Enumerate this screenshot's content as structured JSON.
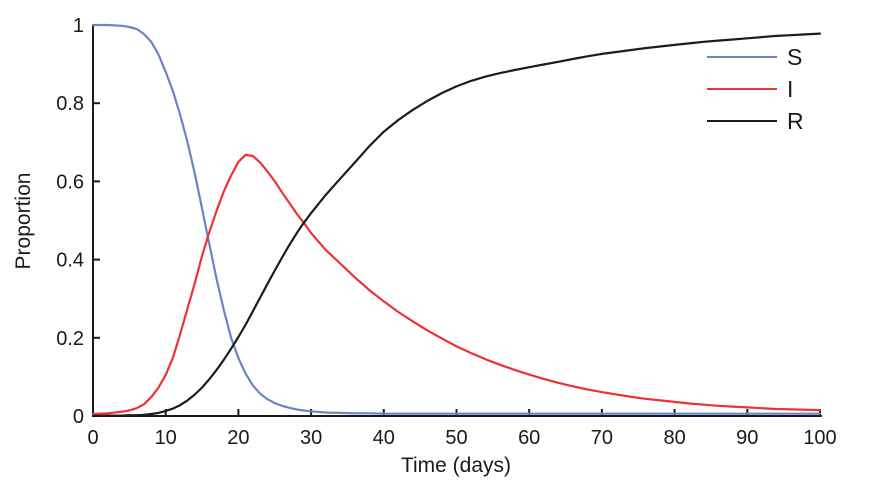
{
  "figure": {
    "background": "#ffffff",
    "axis_color": "#1c1c1c",
    "text_color": "#1a1a1a",
    "tick_font_px": 20
  },
  "chart_data": {
    "type": "line",
    "title": "",
    "xlabel": "Time (days)",
    "ylabel": "Proportion",
    "xlim": [
      0,
      100
    ],
    "ylim": [
      0,
      1
    ],
    "x_ticks": [
      0,
      10,
      20,
      30,
      40,
      50,
      60,
      70,
      80,
      90,
      100
    ],
    "y_ticks": [
      0,
      0.2,
      0.4,
      0.6,
      0.8,
      1
    ],
    "grid": false,
    "legend_position": "upper-right",
    "x": [
      0,
      2,
      4,
      5,
      6,
      7,
      8,
      9,
      10,
      11,
      12,
      13,
      14,
      15,
      16,
      17,
      18,
      19,
      20,
      21,
      22,
      23,
      24,
      25,
      26,
      27,
      28,
      29,
      30,
      32,
      34,
      36,
      38,
      40,
      42,
      44,
      46,
      48,
      50,
      52,
      54,
      56,
      58,
      60,
      62,
      64,
      66,
      68,
      70,
      72,
      74,
      76,
      78,
      80,
      82,
      84,
      86,
      88,
      90,
      92,
      94,
      96,
      98,
      100
    ],
    "series": [
      {
        "name": "S",
        "color": "#6b84c6",
        "values": [
          1.0,
          1.0,
          0.998,
          0.995,
          0.99,
          0.977,
          0.957,
          0.925,
          0.88,
          0.83,
          0.77,
          0.7,
          0.62,
          0.53,
          0.44,
          0.35,
          0.27,
          0.2,
          0.148,
          0.108,
          0.078,
          0.057,
          0.043,
          0.033,
          0.026,
          0.021,
          0.017,
          0.014,
          0.012,
          0.009,
          0.008,
          0.007,
          0.007,
          0.006,
          0.006,
          0.006,
          0.006,
          0.006,
          0.006,
          0.006,
          0.006,
          0.006,
          0.006,
          0.006,
          0.006,
          0.006,
          0.006,
          0.006,
          0.006,
          0.006,
          0.006,
          0.006,
          0.006,
          0.006,
          0.006,
          0.006,
          0.006,
          0.006,
          0.006,
          0.006,
          0.006,
          0.006,
          0.006,
          0.006
        ]
      },
      {
        "name": "I",
        "color": "#ed3237",
        "values": [
          0.005,
          0.007,
          0.011,
          0.014,
          0.02,
          0.03,
          0.048,
          0.072,
          0.105,
          0.15,
          0.21,
          0.275,
          0.34,
          0.41,
          0.47,
          0.525,
          0.575,
          0.615,
          0.65,
          0.668,
          0.665,
          0.648,
          0.625,
          0.6,
          0.572,
          0.545,
          0.518,
          0.494,
          0.468,
          0.425,
          0.39,
          0.355,
          0.322,
          0.293,
          0.266,
          0.242,
          0.219,
          0.198,
          0.178,
          0.161,
          0.145,
          0.131,
          0.118,
          0.106,
          0.095,
          0.085,
          0.076,
          0.068,
          0.061,
          0.055,
          0.049,
          0.044,
          0.04,
          0.036,
          0.032,
          0.029,
          0.026,
          0.024,
          0.022,
          0.02,
          0.018,
          0.017,
          0.016,
          0.015
        ]
      },
      {
        "name": "R",
        "color": "#1c1c1c",
        "values": [
          0.0,
          0.001,
          0.001,
          0.002,
          0.002,
          0.003,
          0.005,
          0.008,
          0.013,
          0.019,
          0.028,
          0.04,
          0.055,
          0.073,
          0.094,
          0.118,
          0.144,
          0.172,
          0.202,
          0.234,
          0.268,
          0.303,
          0.338,
          0.372,
          0.405,
          0.437,
          0.467,
          0.494,
          0.519,
          0.565,
          0.607,
          0.648,
          0.69,
          0.727,
          0.757,
          0.783,
          0.806,
          0.826,
          0.843,
          0.857,
          0.868,
          0.877,
          0.885,
          0.892,
          0.899,
          0.906,
          0.913,
          0.92,
          0.926,
          0.931,
          0.936,
          0.941,
          0.945,
          0.949,
          0.953,
          0.957,
          0.96,
          0.963,
          0.966,
          0.969,
          0.972,
          0.974,
          0.976,
          0.978
        ]
      }
    ]
  }
}
